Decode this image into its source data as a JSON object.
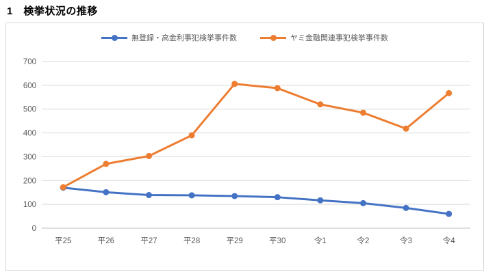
{
  "page": {
    "title": "1　検挙状況の推移"
  },
  "chart_data": {
    "type": "line",
    "title": "検挙状況の推移",
    "categories": [
      "平25",
      "平26",
      "平27",
      "平28",
      "平29",
      "平30",
      "令1",
      "令2",
      "令3",
      "令4"
    ],
    "series": [
      {
        "name": "無登録・高金利事犯検挙事件数",
        "color": "#4472C4",
        "values": [
          170,
          151,
          139,
          138,
          135,
          130,
          117,
          105,
          85,
          60
        ]
      },
      {
        "name": "ヤミ金融関連事犯検挙事件数",
        "color": "#ED7D31",
        "values": [
          172,
          270,
          303,
          390,
          606,
          588,
          520,
          485,
          418,
          567
        ]
      }
    ],
    "xlabel": "",
    "ylabel": "",
    "ylim": [
      0,
      700
    ],
    "ytick_interval": 100,
    "grid": true,
    "legend_position": "top",
    "gridline_color": "#D9D9D9",
    "axis_line_color": "#BFBFBF",
    "axis_label_color": "#595959",
    "marker": "circle"
  }
}
